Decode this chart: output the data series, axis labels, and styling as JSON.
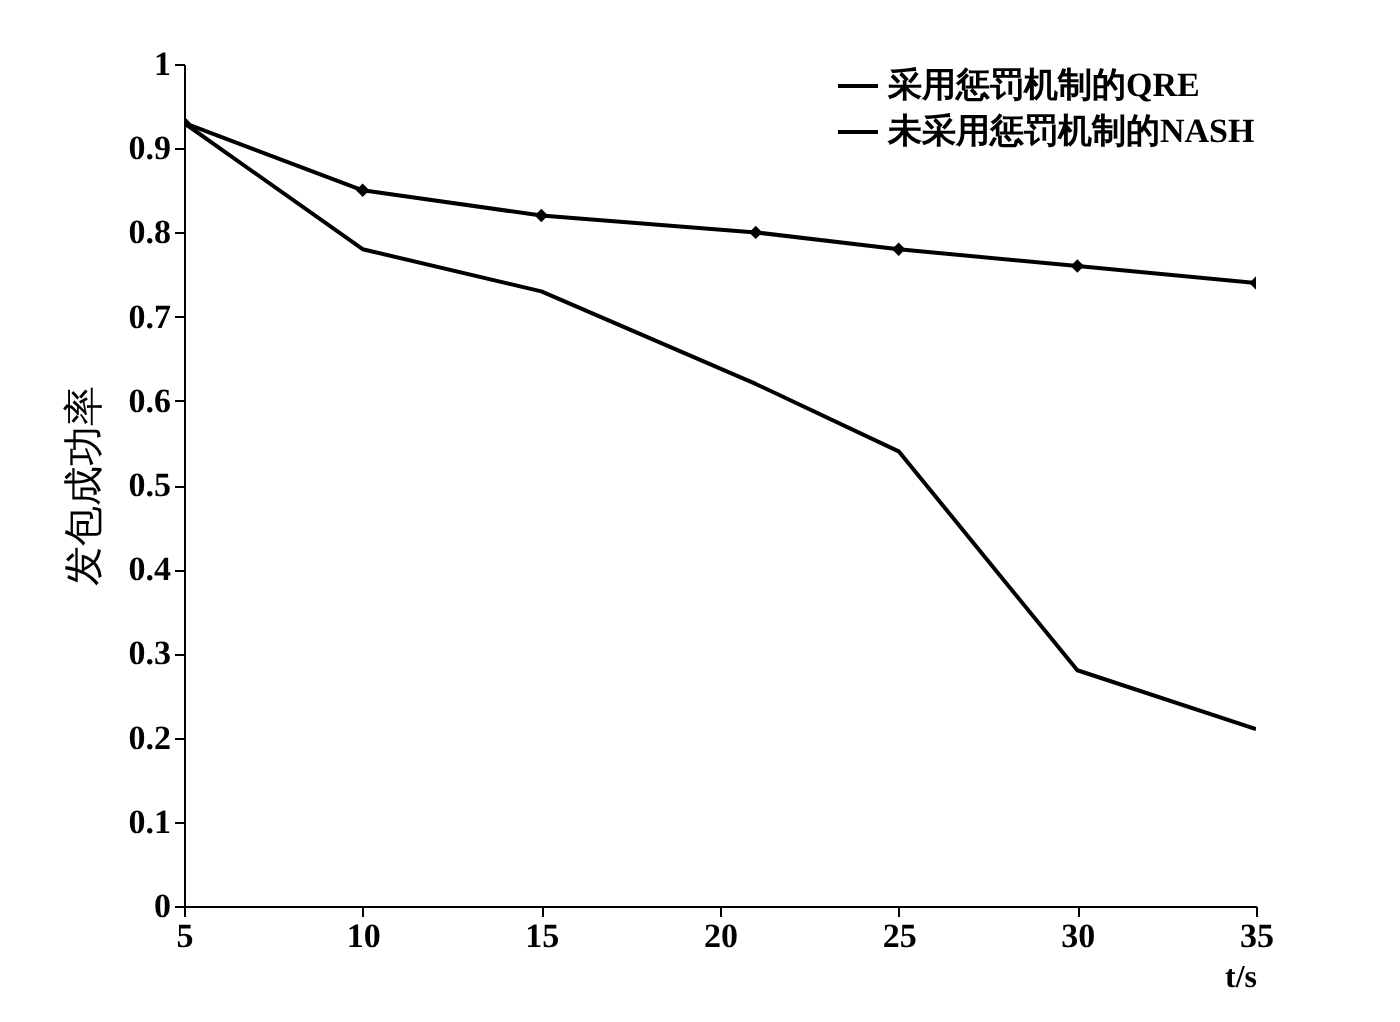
{
  "chart_data": {
    "type": "line",
    "xlabel": "t/s",
    "ylabel": "发包成功率",
    "x": [
      5,
      10,
      15,
      21,
      25,
      30,
      35
    ],
    "series": [
      {
        "name": "采用惩罚机制的QRE",
        "color": "#000000",
        "marker": "diamond",
        "values": [
          0.93,
          0.85,
          0.82,
          0.8,
          0.78,
          0.76,
          0.74
        ]
      },
      {
        "name": "未采用惩罚机制的NASH",
        "color": "#000000",
        "marker": "none",
        "values": [
          0.93,
          0.78,
          0.73,
          0.62,
          0.54,
          0.28,
          0.21
        ]
      }
    ],
    "xlim": [
      5,
      35
    ],
    "xticks": [
      5,
      10,
      15,
      20,
      25,
      30,
      35
    ],
    "ylim": [
      0,
      1
    ],
    "yticks": [
      0,
      0.1,
      0.2,
      0.3,
      0.4,
      0.5,
      0.6,
      0.7,
      0.8,
      0.9,
      1
    ],
    "legend": "top right",
    "grid": false
  }
}
